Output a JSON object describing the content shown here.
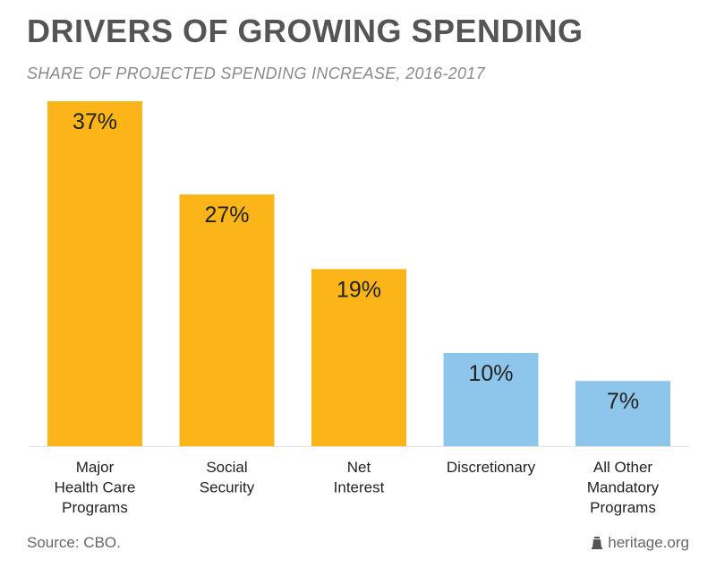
{
  "title": "DRIVERS OF GROWING SPENDING",
  "subtitle": "SHARE OF PROJECTED SPENDING INCREASE, 2016-2017",
  "source": "Source: CBO.",
  "brand": "heritage.org",
  "colors": {
    "mandatory": "#FBB519",
    "discretionary": "#8DC5EB",
    "axis": "#e3e3e3",
    "text": "#222222"
  },
  "chart_data": {
    "type": "bar",
    "categories": [
      [
        "Major",
        "Health Care",
        "Programs"
      ],
      [
        "Social",
        "Security"
      ],
      [
        "Net",
        "Interest"
      ],
      [
        "Discretionary"
      ],
      [
        "All Other",
        "Mandatory",
        "Programs"
      ]
    ],
    "values": [
      37,
      27,
      19,
      10,
      7
    ],
    "value_labels": [
      "37%",
      "27%",
      "19%",
      "10%",
      "7%"
    ],
    "bar_colors": [
      "#FBB519",
      "#FBB519",
      "#FBB519",
      "#8DC5EB",
      "#8DC5EB"
    ],
    "ylim": [
      0,
      37
    ],
    "grid": false
  }
}
